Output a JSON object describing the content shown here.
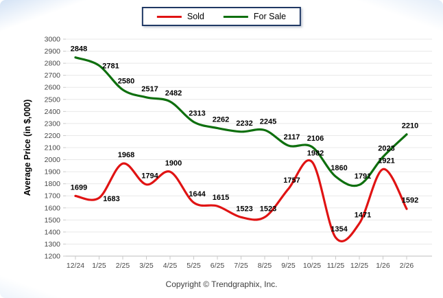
{
  "footer": {
    "copyright": "Copyright © Trendgraphix, Inc."
  },
  "chart_data": {
    "type": "line",
    "title": "",
    "categories": [
      "12/24",
      "1/25",
      "2/25",
      "3/25",
      "4/25",
      "5/25",
      "6/25",
      "7/25",
      "8/25",
      "9/25",
      "10/25",
      "11/25",
      "12/25",
      "1/26",
      "2/26"
    ],
    "series": [
      {
        "name": "Sold",
        "color": "#e01313",
        "values": [
          1699,
          1683,
          1968,
          1794,
          1900,
          1644,
          1615,
          1523,
          1523,
          1757,
          1982,
          1354,
          1471,
          1921,
          1592
        ]
      },
      {
        "name": "For Sale",
        "color": "#0e6f0e",
        "values": [
          2848,
          2781,
          2580,
          2517,
          2482,
          2313,
          2262,
          2232,
          2245,
          2117,
          2106,
          1860,
          1791,
          2023,
          2210
        ]
      }
    ],
    "xlabel": "",
    "ylabel": "Average Price (in $,000)",
    "ylim": [
      1200,
      3000
    ],
    "ytick_step": 100,
    "grid": true,
    "data_labels": true,
    "legend_position": "top-center",
    "colors": {
      "grid_line": "#e8e8e8",
      "axis_line": "#bdbdbd",
      "tick_mark": "#c9c9c9",
      "tick_label": "#474747",
      "data_label": "#000000",
      "legend_border": "#1f3864"
    }
  }
}
